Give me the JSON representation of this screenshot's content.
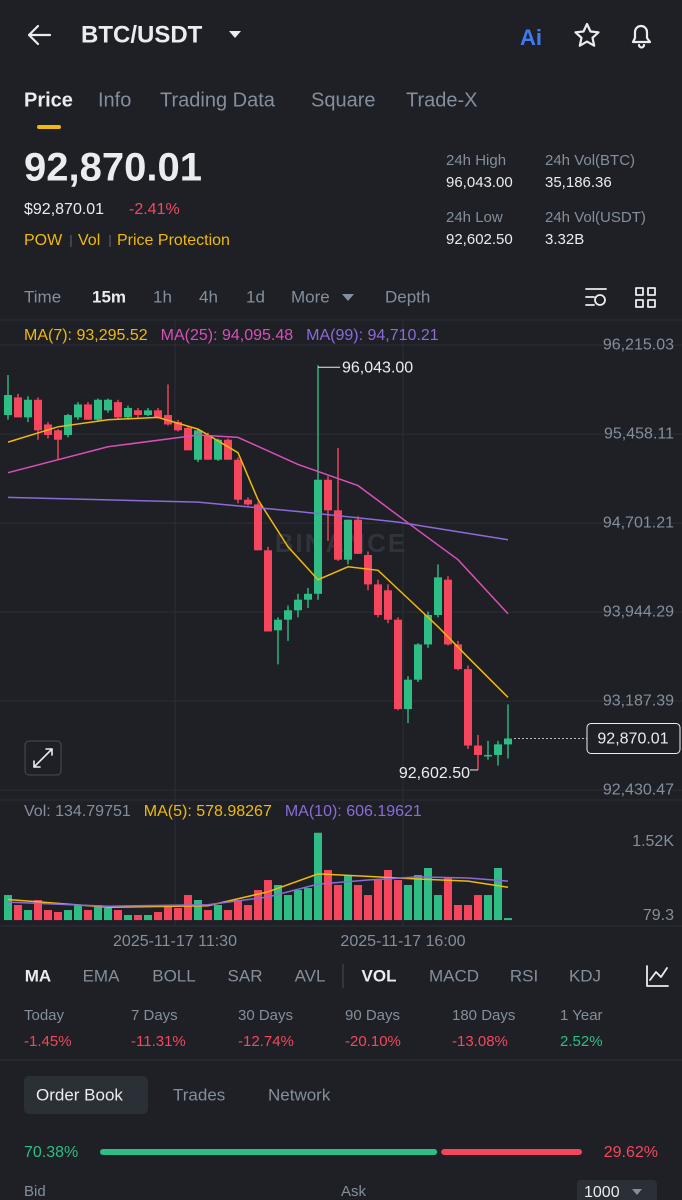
{
  "header": {
    "pair": "BTC/USDT",
    "ai": "Ai"
  },
  "tabs": [
    "Price",
    "Info",
    "Trading Data",
    "Square",
    "Trade-X"
  ],
  "price": {
    "last": "92,870.01",
    "usd": "$92,870.01",
    "change": "-2.41%",
    "tags": [
      "POW",
      "Vol",
      "Price Protection"
    ],
    "stats": [
      {
        "label": "24h High",
        "value": "96,043.00"
      },
      {
        "label": "24h Vol(BTC)",
        "value": "35,186.36"
      },
      {
        "label": "24h Low",
        "value": "92,602.50"
      },
      {
        "label": "24h Vol(USDT)",
        "value": "3.32B"
      }
    ]
  },
  "intervals": [
    "Time",
    "15m",
    "1h",
    "4h",
    "1d",
    "More",
    "Depth"
  ],
  "chart_data": {
    "type": "candlestick",
    "watermark": "BINANCE",
    "up_color": "#2ebd85",
    "down_color": "#f6465d",
    "legend": [
      {
        "label": "MA(7): 93,295.52",
        "color": "#f0b90b"
      },
      {
        "label": "MA(25): 94,095.48",
        "color": "#d94fb8"
      },
      {
        "label": "MA(99): 94,710.21",
        "color": "#8c6bd8"
      }
    ],
    "xlim": [
      -0.8,
      67.4
    ],
    "xticks": [
      {
        "value": 16.7,
        "label": "2025-11-17 11:30"
      },
      {
        "value": 39.5,
        "label": "2025-11-17 16:00"
      }
    ],
    "ylim": [
      92347,
      96428
    ],
    "yticks": [
      {
        "value": 96215.03,
        "label": "96,215.03"
      },
      {
        "value": 95458.11,
        "label": "95,458.11"
      },
      {
        "value": 94701.21,
        "label": "94,701.21"
      },
      {
        "value": 93944.29,
        "label": "93,944.29"
      },
      {
        "value": 93187.39,
        "label": "93,187.39"
      },
      {
        "value": 92430.47,
        "label": "92,430.47"
      }
    ],
    "high_label": "96,043.00",
    "low_label": "92,602.50",
    "last_label": "92,870.01",
    "candles": [
      [
        95620,
        95960,
        95580,
        95790
      ],
      [
        95770,
        95800,
        95600,
        95600
      ],
      [
        95600,
        95780,
        95560,
        95750
      ],
      [
        95750,
        95770,
        95410,
        95490
      ],
      [
        95540,
        95560,
        95420,
        95450
      ],
      [
        95490,
        95500,
        95240,
        95410
      ],
      [
        95450,
        95630,
        95430,
        95620
      ],
      [
        95600,
        95730,
        95580,
        95710
      ],
      [
        95710,
        95730,
        95580,
        95580
      ],
      [
        95580,
        95760,
        95560,
        95750
      ],
      [
        95660,
        95760,
        95640,
        95750
      ],
      [
        95730,
        95750,
        95590,
        95600
      ],
      [
        95600,
        95700,
        95580,
        95680
      ],
      [
        95660,
        95680,
        95600,
        95620
      ],
      [
        95620,
        95680,
        95610,
        95660
      ],
      [
        95660,
        95680,
        95590,
        95600
      ],
      [
        95620,
        95880,
        95530,
        95540
      ],
      [
        95560,
        95580,
        95480,
        95490
      ],
      [
        95510,
        95530,
        95320,
        95320
      ],
      [
        95240,
        95500,
        95220,
        95490
      ],
      [
        95450,
        95470,
        95240,
        95240
      ],
      [
        95240,
        95420,
        95230,
        95410
      ],
      [
        95410,
        95420,
        95240,
        95240
      ],
      [
        95240,
        95260,
        94870,
        94900
      ],
      [
        94900,
        94920,
        94850,
        94860
      ],
      [
        94860,
        94880,
        94470,
        94470
      ],
      [
        94470,
        94500,
        93780,
        93780
      ],
      [
        93790,
        93900,
        93500,
        93880
      ],
      [
        93880,
        94000,
        93700,
        93960
      ],
      [
        93960,
        94100,
        93900,
        94050
      ],
      [
        94050,
        94150,
        93980,
        94100
      ],
      [
        94100,
        96043,
        94050,
        95070
      ],
      [
        95070,
        95100,
        94550,
        94810
      ],
      [
        94810,
        95340,
        94380,
        94390
      ],
      [
        94390,
        94730,
        94350,
        94730
      ],
      [
        94730,
        94760,
        94440,
        94440
      ],
      [
        94430,
        94460,
        94130,
        94180
      ],
      [
        94180,
        94220,
        93900,
        93920
      ],
      [
        94130,
        94180,
        93850,
        93880
      ],
      [
        93880,
        93900,
        93110,
        93120
      ],
      [
        93120,
        93400,
        93000,
        93370
      ],
      [
        93370,
        93680,
        93350,
        93670
      ],
      [
        93670,
        93950,
        93640,
        93920
      ],
      [
        93920,
        94350,
        93900,
        94240
      ],
      [
        94220,
        94250,
        93660,
        93670
      ],
      [
        93670,
        93700,
        93450,
        93460
      ],
      [
        93460,
        93490,
        92780,
        92810
      ],
      [
        92810,
        92900,
        92602.5,
        92730
      ],
      [
        92730,
        92850,
        92690,
        92730
      ],
      [
        92730,
        92850,
        92640,
        92820
      ],
      [
        92820,
        93160,
        92700,
        92870.01
      ]
    ],
    "ma": [
      {
        "x": [
          0,
          5,
          10,
          15,
          19,
          23,
          25,
          28,
          31,
          34,
          37,
          40,
          43,
          46,
          50
        ],
        "values": [
          95390,
          95520,
          95580,
          95600,
          95500,
          95300,
          94900,
          94500,
          94220,
          94330,
          94300,
          94060,
          93820,
          93560,
          93220
        ]
      },
      {
        "x": [
          0,
          10,
          19,
          23,
          29,
          35,
          41,
          45,
          50
        ],
        "values": [
          95130,
          95350,
          95450,
          95430,
          95200,
          95020,
          94640,
          94390,
          93930
        ]
      },
      {
        "x": [
          0,
          19,
          29,
          39,
          50
        ],
        "values": [
          94920,
          94880,
          94800,
          94710,
          94560
        ]
      }
    ],
    "volume": {
      "legend": [
        {
          "label": "Vol: 134.79751",
          "color": "#848e9c"
        },
        {
          "label": "MA(5): 578.98267",
          "color": "#f0b90b"
        },
        {
          "label": "MA(10): 606.19621",
          "color": "#8c6bd8"
        }
      ],
      "ylim": [
        -115,
        1715
      ],
      "yticks": [
        {
          "value": 1520,
          "label": "1.52K"
        },
        79.3
      ],
      "values": [
        488,
        294,
        196,
        391,
        196,
        157,
        196,
        294,
        196,
        294,
        235,
        196,
        99,
        99,
        99,
        157,
        294,
        235,
        488,
        391,
        196,
        294,
        196,
        391,
        294,
        585,
        780,
        683,
        488,
        585,
        624,
        1700,
        975,
        683,
        877,
        683,
        488,
        780,
        975,
        780,
        683,
        877,
        1014,
        488,
        830,
        294,
        294,
        488,
        488,
        1014,
        40
      ],
      "ma": [
        {
          "x": [
            0,
            10,
            20,
            26,
            31,
            36,
            41,
            46,
            50
          ],
          "values": [
            400,
            250,
            280,
            550,
            900,
            850,
            800,
            760,
            640
          ]
        },
        {
          "x": [
            0,
            10,
            20,
            26,
            31,
            36,
            41,
            46,
            50
          ],
          "values": [
            350,
            270,
            300,
            450,
            700,
            780,
            840,
            820,
            760
          ]
        }
      ]
    }
  },
  "indicators": [
    "MA",
    "EMA",
    "BOLL",
    "SAR",
    "AVL",
    "VOL",
    "MACD",
    "RSI",
    "KDJ"
  ],
  "performance": [
    {
      "label": "Today",
      "value": "-1.45%"
    },
    {
      "label": "7 Days",
      "value": "-11.31%"
    },
    {
      "label": "30 Days",
      "value": "-12.74%"
    },
    {
      "label": "90 Days",
      "value": "-20.10%"
    },
    {
      "label": "180 Days",
      "value": "-13.08%"
    },
    {
      "label": "1 Year",
      "value": "2.52%"
    }
  ],
  "order_tabs": [
    "Order Book",
    "Trades",
    "Network"
  ],
  "ratio": {
    "buy": 70.38,
    "buy_label": "70.38%",
    "sell": 29.62,
    "sell_label": "29.62%"
  },
  "book": {
    "bid": "Bid",
    "ask": "Ask",
    "depth": "1000"
  }
}
